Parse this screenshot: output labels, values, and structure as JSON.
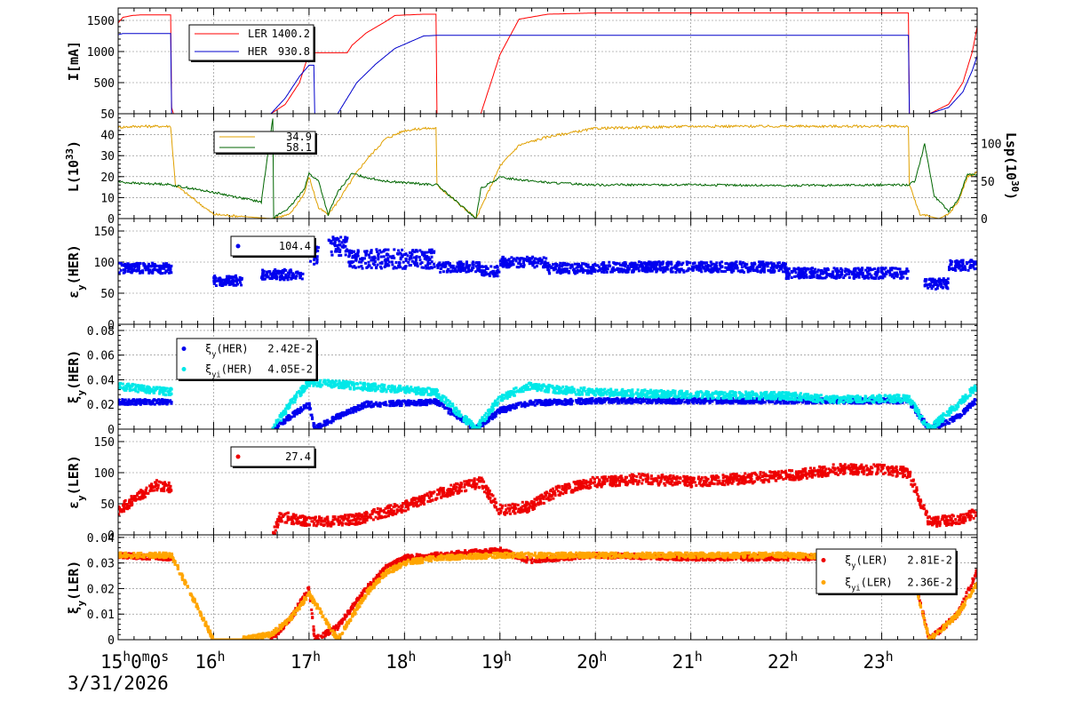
{
  "x_axis": {
    "start_label": "15h0m0s",
    "tick_labels": [
      "16h",
      "17h",
      "18h",
      "19h",
      "20h",
      "21h",
      "22h",
      "23h"
    ],
    "date": "3/31/2026",
    "range_hours": [
      15.0,
      24.0
    ]
  },
  "chart_data": [
    {
      "type": "line",
      "ylabel": "I[mA]",
      "ylim": [
        0,
        1700
      ],
      "yticks": [
        0,
        500,
        1000,
        1500
      ],
      "ytick_labels": [
        "500",
        "1000",
        "1500"
      ],
      "grid": true,
      "series": [
        {
          "name": "LER",
          "legend_value": "1400.2",
          "color": "#ff0000",
          "x": [
            15.0,
            15.05,
            15.15,
            15.25,
            15.3,
            15.55,
            15.56,
            15.58,
            16.0,
            16.2,
            16.6,
            16.75,
            16.9,
            17.0,
            17.05,
            17.1,
            17.3,
            17.4,
            17.45,
            17.6,
            17.8,
            17.9,
            18.2,
            18.33,
            18.34,
            18.8,
            19.0,
            19.2,
            19.5,
            20.0,
            21.0,
            22.0,
            23.0,
            23.28,
            23.29,
            23.5,
            23.7,
            23.85,
            23.95,
            24.0
          ],
          "y": [
            1460,
            1550,
            1580,
            1590,
            1590,
            1590,
            100,
            0,
            0,
            0,
            0,
            150,
            500,
            980,
            980,
            980,
            980,
            980,
            1100,
            1300,
            1480,
            1580,
            1600,
            1600,
            0,
            0,
            950,
            1520,
            1600,
            1620,
            1620,
            1620,
            1620,
            1620,
            0,
            0,
            150,
            500,
            1000,
            1400
          ]
        },
        {
          "name": "HER",
          "legend_value": "930.8",
          "color": "#0000cc",
          "x": [
            15.0,
            15.05,
            15.3,
            15.55,
            15.56,
            15.58,
            16.0,
            16.6,
            16.75,
            16.9,
            17.0,
            17.05,
            17.06,
            17.3,
            17.5,
            17.7,
            17.9,
            18.2,
            18.33,
            18.34,
            18.8,
            19.0,
            20.0,
            21.0,
            22.0,
            23.0,
            23.28,
            23.29,
            23.5,
            23.7,
            23.85,
            23.95,
            24.0
          ],
          "y": [
            1270,
            1290,
            1290,
            1290,
            0,
            0,
            0,
            0,
            250,
            600,
            780,
            780,
            0,
            0,
            500,
            800,
            1050,
            1250,
            1260,
            1260,
            1260,
            1260,
            1260,
            1260,
            1260,
            1260,
            1260,
            0,
            0,
            100,
            350,
            700,
            930
          ]
        }
      ]
    },
    {
      "type": "line",
      "ylabel": "L(10^33)",
      "y2label": "Lsp(10^30)",
      "ylim": [
        0,
        50
      ],
      "yticks": [
        0,
        10,
        20,
        30,
        40,
        50
      ],
      "ytick_labels": [
        "0",
        "10",
        "20",
        "30",
        "40",
        "50"
      ],
      "y2lim": [
        0,
        140
      ],
      "y2ticks": [
        0,
        50,
        100
      ],
      "y2tick_labels": [
        "0",
        "50",
        "100"
      ],
      "grid": true,
      "series": [
        {
          "legend_value": "34.9",
          "color": "#e0a000",
          "axis": "left",
          "x": [
            15.0,
            15.2,
            15.5,
            15.55,
            15.6,
            16.0,
            16.6,
            16.8,
            16.95,
            17.0,
            17.1,
            17.2,
            17.3,
            17.5,
            17.6,
            17.8,
            18.0,
            18.2,
            18.33,
            18.34,
            18.75,
            18.85,
            19.0,
            19.2,
            19.5,
            20.0,
            21.0,
            22.0,
            23.0,
            23.28,
            23.29,
            23.4,
            23.6,
            23.7,
            23.8,
            23.9,
            24.0
          ],
          "y": [
            43.5,
            44,
            44,
            44,
            16,
            2,
            0,
            2,
            12,
            20,
            5,
            2,
            8,
            22,
            28,
            38,
            42,
            43,
            43,
            16,
            0,
            10,
            25,
            35,
            39,
            43,
            44,
            44,
            44,
            44,
            16,
            2,
            0,
            2,
            8,
            20,
            22
          ]
        },
        {
          "legend_value": "58.1",
          "color": "#006600",
          "axis": "right",
          "x": [
            15.0,
            15.2,
            15.5,
            15.55,
            16.0,
            16.5,
            16.62,
            16.63,
            16.64,
            16.8,
            16.95,
            17.0,
            17.1,
            17.2,
            17.3,
            17.45,
            17.6,
            17.8,
            18.0,
            18.2,
            18.33,
            18.34,
            18.75,
            18.8,
            19.0,
            19.5,
            20.0,
            21.0,
            22.0,
            23.0,
            23.28,
            23.35,
            23.45,
            23.5,
            23.55,
            23.7,
            23.8,
            23.9,
            24.0
          ],
          "y": [
            49,
            47,
            46,
            45,
            35,
            22,
            135,
            0,
            2,
            15,
            40,
            60,
            50,
            5,
            35,
            60,
            55,
            50,
            48,
            46,
            45,
            45,
            0,
            40,
            55,
            48,
            45,
            45,
            44,
            45,
            45,
            50,
            100,
            65,
            30,
            10,
            25,
            60,
            58
          ]
        }
      ]
    },
    {
      "type": "scatter",
      "ylabel": "εy(HER)",
      "ylim": [
        0,
        170
      ],
      "yticks": [
        0,
        50,
        100,
        150
      ],
      "ytick_labels": [
        "0",
        "50",
        "100",
        "150"
      ],
      "grid": true,
      "series": [
        {
          "legend_value": "104.4",
          "color": "#0000ee",
          "segments": [
            [
              15.0,
              15.56,
              90
            ],
            [
              16.0,
              16.3,
              70
            ],
            [
              16.5,
              16.95,
              80
            ],
            [
              17.0,
              17.1,
              110
            ],
            [
              17.2,
              17.4,
              125
            ],
            [
              17.4,
              18.0,
              105
            ],
            [
              18.0,
              18.33,
              105
            ],
            [
              18.33,
              18.8,
              92
            ],
            [
              18.8,
              19.0,
              85
            ],
            [
              19.0,
              19.5,
              100
            ],
            [
              19.5,
              20.0,
              90
            ],
            [
              20.0,
              21.0,
              92
            ],
            [
              21.0,
              22.0,
              92
            ],
            [
              22.0,
              23.28,
              82
            ],
            [
              23.45,
              23.7,
              65
            ],
            [
              23.7,
              24.0,
              95
            ]
          ]
        }
      ]
    },
    {
      "type": "scatter",
      "ylabel": "ξy(HER)",
      "ylim": [
        0,
        0.085
      ],
      "yticks": [
        0,
        0.02,
        0.04,
        0.06,
        0.08
      ],
      "ytick_labels": [
        "0",
        "0.02",
        "0.04",
        "0.06",
        "0.08"
      ],
      "grid": true,
      "series": [
        {
          "name": "ξy(HER)",
          "legend_value": "2.42E-2",
          "color": "#0000ee",
          "points": [
            [
              15.0,
              0.022
            ],
            [
              15.56,
              0.022
            ],
            [
              16.62,
              0.0
            ],
            [
              16.8,
              0.01
            ],
            [
              17.0,
              0.02
            ],
            [
              17.06,
              0.0
            ],
            [
              17.3,
              0.01
            ],
            [
              17.6,
              0.02
            ],
            [
              18.33,
              0.022
            ],
            [
              18.75,
              0.0
            ],
            [
              19.0,
              0.015
            ],
            [
              19.3,
              0.021
            ],
            [
              20.0,
              0.023
            ],
            [
              21.0,
              0.023
            ],
            [
              22.0,
              0.023
            ],
            [
              23.28,
              0.023
            ],
            [
              23.5,
              0.0
            ],
            [
              23.8,
              0.01
            ],
            [
              24.0,
              0.024
            ]
          ]
        },
        {
          "name": "ξyi(HER)",
          "legend_value": "4.05E-2",
          "color": "#00e8e8",
          "points": [
            [
              15.0,
              0.035
            ],
            [
              15.56,
              0.03
            ],
            [
              16.62,
              0.0
            ],
            [
              16.8,
              0.02
            ],
            [
              17.0,
              0.038
            ],
            [
              17.5,
              0.035
            ],
            [
              18.0,
              0.032
            ],
            [
              18.33,
              0.03
            ],
            [
              18.75,
              0.0
            ],
            [
              19.0,
              0.025
            ],
            [
              19.3,
              0.035
            ],
            [
              19.6,
              0.032
            ],
            [
              20.0,
              0.03
            ],
            [
              21.0,
              0.028
            ],
            [
              22.0,
              0.027
            ],
            [
              22.5,
              0.024
            ],
            [
              23.28,
              0.025
            ],
            [
              23.5,
              0.0
            ],
            [
              23.8,
              0.02
            ],
            [
              24.0,
              0.035
            ]
          ]
        }
      ]
    },
    {
      "type": "scatter",
      "ylabel": "εy(LER)",
      "ylim": [
        0,
        170
      ],
      "yticks": [
        0,
        50,
        100,
        150
      ],
      "ytick_labels": [
        "0",
        "50",
        "100",
        "150"
      ],
      "grid": true,
      "series": [
        {
          "legend_value": "27.4",
          "color": "#ee0000",
          "points": [
            [
              15.0,
              40
            ],
            [
              15.2,
              60
            ],
            [
              15.4,
              80
            ],
            [
              15.56,
              75
            ],
            [
              16.62,
              0
            ],
            [
              16.7,
              30
            ],
            [
              17.0,
              20
            ],
            [
              17.5,
              25
            ],
            [
              18.0,
              45
            ],
            [
              18.33,
              65
            ],
            [
              18.8,
              85
            ],
            [
              19.0,
              40
            ],
            [
              19.3,
              45
            ],
            [
              19.6,
              70
            ],
            [
              20.0,
              85
            ],
            [
              20.5,
              90
            ],
            [
              21.0,
              85
            ],
            [
              21.5,
              90
            ],
            [
              22.0,
              95
            ],
            [
              22.3,
              100
            ],
            [
              22.5,
              105
            ],
            [
              23.0,
              105
            ],
            [
              23.28,
              100
            ],
            [
              23.5,
              20
            ],
            [
              23.8,
              25
            ],
            [
              24.0,
              35
            ]
          ]
        }
      ]
    },
    {
      "type": "scatter",
      "ylabel": "ξy(LER)",
      "ylim": [
        0,
        0.041
      ],
      "yticks": [
        0,
        0.01,
        0.02,
        0.03,
        0.04
      ],
      "ytick_labels": [
        "0",
        "0.01",
        "0.02",
        "0.03",
        "0.04"
      ],
      "grid": true,
      "series": [
        {
          "name": "ξy(LER)",
          "legend_value": "2.81E-2",
          "color": "#ee0000",
          "points": [
            [
              15.0,
              0.033
            ],
            [
              15.56,
              0.032
            ],
            [
              16.6,
              0.0
            ],
            [
              16.8,
              0.008
            ],
            [
              17.0,
              0.02
            ],
            [
              17.06,
              0.0
            ],
            [
              17.3,
              0.005
            ],
            [
              17.6,
              0.02
            ],
            [
              17.8,
              0.028
            ],
            [
              18.0,
              0.032
            ],
            [
              18.33,
              0.033
            ],
            [
              19.0,
              0.035
            ],
            [
              19.3,
              0.031
            ],
            [
              20.0,
              0.033
            ],
            [
              21.0,
              0.032
            ],
            [
              22.0,
              0.032
            ],
            [
              23.28,
              0.033
            ],
            [
              23.5,
              0.0
            ],
            [
              23.8,
              0.01
            ],
            [
              24.0,
              0.027
            ]
          ]
        },
        {
          "name": "ξyi(LER)",
          "legend_value": "2.36E-2",
          "color": "#ffa500",
          "points": [
            [
              15.0,
              0.033
            ],
            [
              15.56,
              0.033
            ],
            [
              16.0,
              0.0
            ],
            [
              16.3,
              0.0
            ],
            [
              16.6,
              0.002
            ],
            [
              16.8,
              0.008
            ],
            [
              17.0,
              0.018
            ],
            [
              17.3,
              0.0
            ],
            [
              17.6,
              0.018
            ],
            [
              17.8,
              0.026
            ],
            [
              18.0,
              0.03
            ],
            [
              18.33,
              0.032
            ],
            [
              19.0,
              0.033
            ],
            [
              20.0,
              0.033
            ],
            [
              21.0,
              0.033
            ],
            [
              22.0,
              0.033
            ],
            [
              23.28,
              0.032
            ],
            [
              23.5,
              0.0
            ],
            [
              23.8,
              0.01
            ],
            [
              24.0,
              0.022
            ]
          ]
        }
      ]
    }
  ]
}
